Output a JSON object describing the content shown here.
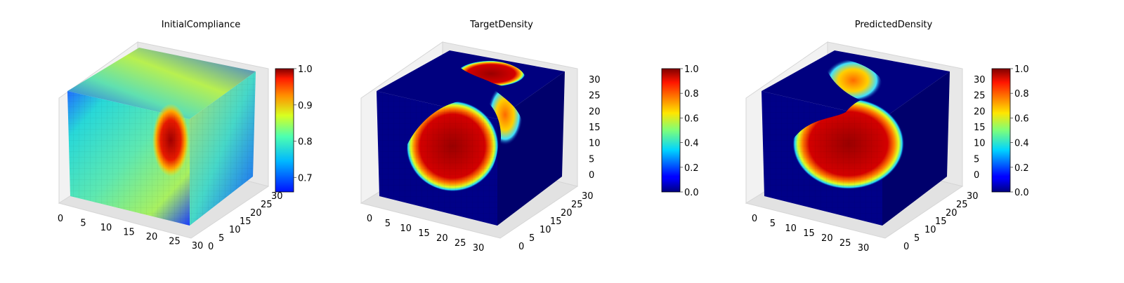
{
  "chart_data": [
    {
      "type": "voxel-3d",
      "title": "InitialCompliance",
      "colormap": "jet",
      "x_ticks": [
        "0",
        "5",
        "10",
        "15",
        "20",
        "25",
        "30"
      ],
      "y_ticks": [
        "0",
        "5",
        "10",
        "15",
        "20",
        "25",
        "30"
      ],
      "z_ticks": [],
      "grid_size": 32,
      "colorbar": {
        "ticks": [
          "1.0",
          "0.9",
          "0.8",
          "0.7"
        ],
        "range": [
          0.66,
          1.0
        ]
      }
    },
    {
      "type": "voxel-3d",
      "title": "TargetDensity",
      "colormap": "jet",
      "x_ticks": [
        "0",
        "5",
        "10",
        "15",
        "20",
        "25",
        "30"
      ],
      "y_ticks": [
        "0",
        "5",
        "10",
        "15",
        "20",
        "25",
        "30"
      ],
      "z_ticks": [
        "0",
        "5",
        "10",
        "15",
        "20",
        "25",
        "30"
      ],
      "grid_size": 32,
      "colorbar": {
        "ticks": [
          "1.0",
          "0.8",
          "0.6",
          "0.4",
          "0.2",
          "0.0"
        ],
        "range": [
          0.0,
          1.0
        ]
      }
    },
    {
      "type": "voxel-3d",
      "title": "PredictedDensity",
      "colormap": "jet",
      "x_ticks": [
        "0",
        "5",
        "10",
        "15",
        "20",
        "25",
        "30"
      ],
      "y_ticks": [
        "0",
        "5",
        "10",
        "15",
        "20",
        "25",
        "30"
      ],
      "z_ticks": [
        "0",
        "5",
        "10",
        "15",
        "20",
        "25",
        "30"
      ],
      "grid_size": 32,
      "colorbar": {
        "ticks": [
          "1.0",
          "0.8",
          "0.6",
          "0.4",
          "0.2",
          "0.0"
        ],
        "range": [
          0.0,
          1.0
        ]
      }
    }
  ]
}
